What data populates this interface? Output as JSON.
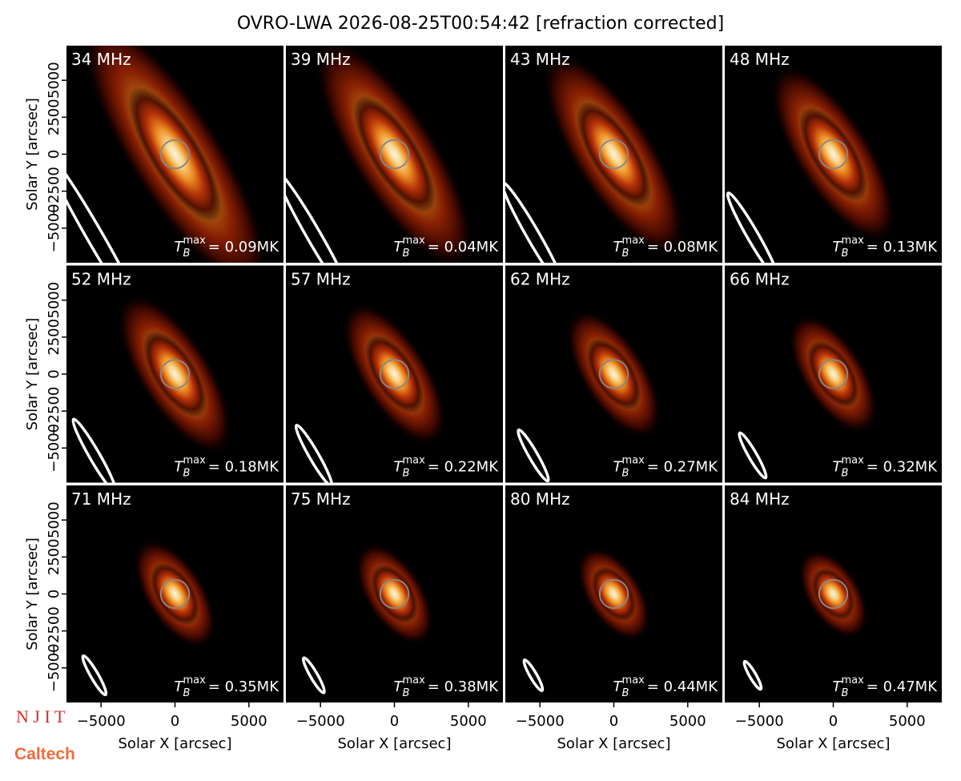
{
  "title": "OVRO-LWA 2026-08-25T00:54:42 [refraction corrected]",
  "logos": [
    "N J I T",
    "Caltech"
  ],
  "tb_symbol": {
    "base": "T",
    "sub": "B",
    "sup": "max"
  },
  "chart_data": [
    {
      "type": "image",
      "title": "34 MHz",
      "annotation": "= 0.09MK",
      "xlim": [
        -7340,
        7340
      ],
      "ylim": [
        -7340,
        7340
      ],
      "yticks": [
        {
          "value": -5000,
          "label": "−5000"
        },
        {
          "value": -2500,
          "label": "−2500"
        },
        0,
        2500,
        5000
      ],
      "ylabel": "Solar Y [arcsec]"
    },
    {
      "type": "image",
      "title": "39 MHz",
      "annotation": "= 0.04MK",
      "xlim": [
        -7340,
        7340
      ],
      "ylim": [
        -7340,
        7340
      ]
    },
    {
      "type": "image",
      "title": "43 MHz",
      "annotation": "= 0.08MK",
      "xlim": [
        -7340,
        7340
      ],
      "ylim": [
        -7340,
        7340
      ]
    },
    {
      "type": "image",
      "title": "48 MHz",
      "annotation": "= 0.13MK",
      "xlim": [
        -7340,
        7340
      ],
      "ylim": [
        -7340,
        7340
      ]
    },
    {
      "type": "image",
      "title": "52 MHz",
      "annotation": "= 0.18MK",
      "xlim": [
        -7340,
        7340
      ],
      "ylim": [
        -7340,
        7340
      ],
      "yticks": [
        {
          "value": -5000,
          "label": "−5000"
        },
        {
          "value": -2500,
          "label": "−2500"
        },
        0,
        2500,
        5000
      ],
      "ylabel": "Solar Y [arcsec]"
    },
    {
      "type": "image",
      "title": "57 MHz",
      "annotation": "= 0.22MK",
      "xlim": [
        -7340,
        7340
      ],
      "ylim": [
        -7340,
        7340
      ]
    },
    {
      "type": "image",
      "title": "62 MHz",
      "annotation": "= 0.27MK",
      "xlim": [
        -7340,
        7340
      ],
      "ylim": [
        -7340,
        7340
      ]
    },
    {
      "type": "image",
      "title": "66 MHz",
      "annotation": "= 0.32MK",
      "xlim": [
        -7340,
        7340
      ],
      "ylim": [
        -7340,
        7340
      ]
    },
    {
      "type": "image",
      "title": "71 MHz",
      "annotation": "= 0.35MK",
      "xlim": [
        -7340,
        7340
      ],
      "ylim": [
        -7340,
        7340
      ],
      "yticks": [
        {
          "value": -5000,
          "label": "−5000"
        },
        {
          "value": -2500,
          "label": "−2500"
        },
        0,
        2500,
        5000
      ],
      "ylabel": "Solar Y [arcsec]",
      "xticks": [
        {
          "value": -5000,
          "label": "−5000"
        },
        0,
        5000
      ],
      "xlabel": "Solar X [arcsec]"
    },
    {
      "type": "image",
      "title": "75 MHz",
      "annotation": "= 0.38MK",
      "xlim": [
        -7340,
        7340
      ],
      "ylim": [
        -7340,
        7340
      ],
      "xticks": [
        {
          "value": -5000,
          "label": "−5000"
        },
        0,
        5000
      ],
      "xlabel": "Solar X [arcsec]"
    },
    {
      "type": "image",
      "title": "80 MHz",
      "annotation": "= 0.44MK",
      "xlim": [
        -7340,
        7340
      ],
      "ylim": [
        -7340,
        7340
      ],
      "xticks": [
        {
          "value": -5000,
          "label": "−5000"
        },
        0,
        5000
      ],
      "xlabel": "Solar X [arcsec]"
    },
    {
      "type": "image",
      "title": "84 MHz",
      "annotation": "= 0.47MK",
      "xlim": [
        -7340,
        7340
      ],
      "ylim": [
        -7340,
        7340
      ],
      "xticks": [
        {
          "value": -5000,
          "label": "−5000"
        },
        0,
        5000
      ],
      "xlabel": "Solar X [arcsec]"
    }
  ]
}
